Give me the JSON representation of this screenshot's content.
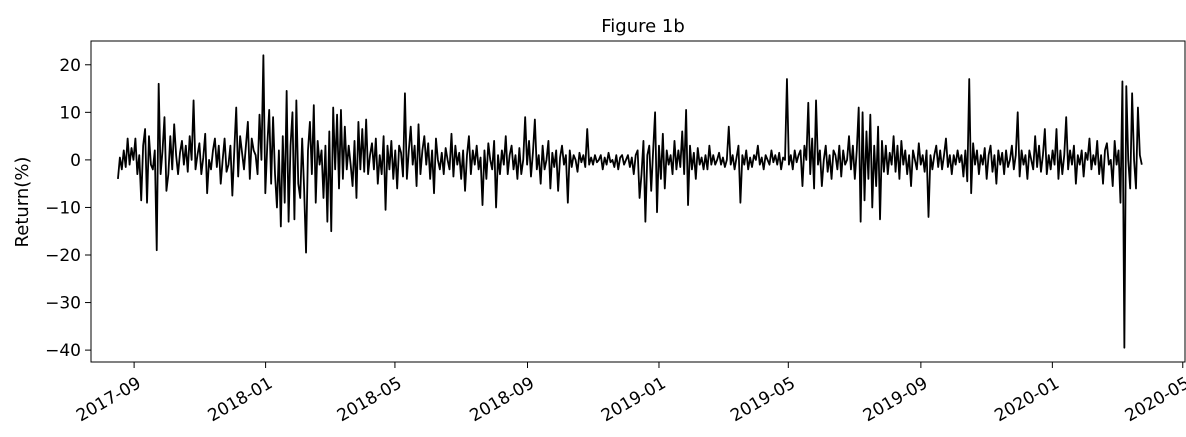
{
  "chart_data": {
    "type": "line",
    "title": "Figure 1b",
    "xlabel": "",
    "ylabel": "Return(%)",
    "ylim": [
      -42.5,
      25
    ],
    "yticks": [
      20,
      10,
      0,
      -10,
      -20,
      -30,
      -40
    ],
    "ytick_labels": [
      "20",
      "10",
      "0",
      "−10",
      "−20",
      "−30",
      "−40"
    ],
    "xlim": [
      "2017-07-23",
      "2020-05-04"
    ],
    "xticks": [
      "2017-09-01",
      "2018-01-01",
      "2018-05-01",
      "2018-09-01",
      "2019-01-01",
      "2019-05-01",
      "2019-09-01",
      "2020-01-01",
      "2020-05-01"
    ],
    "xtick_labels": [
      "2017-09",
      "2018-01",
      "2018-05",
      "2018-09",
      "2019-01",
      "2019-05",
      "2019-09",
      "2020-01",
      "2020-05"
    ],
    "grid": false,
    "legend": false,
    "line_color": "#000000",
    "x_start": "2017-08-17",
    "x_end": "2020-03-24",
    "values": [
      -4.0,
      0.5,
      -2.0,
      2.0,
      -1.5,
      4.5,
      -1.0,
      2.5,
      0.0,
      4.5,
      -3.0,
      1.0,
      -8.5,
      3.0,
      6.5,
      -9.0,
      5.0,
      -1.0,
      -2.0,
      2.0,
      -19.0,
      16.0,
      -3.0,
      2.0,
      9.0,
      -6.5,
      -3.0,
      5.0,
      -2.0,
      7.5,
      1.0,
      -3.0,
      1.5,
      4.0,
      -1.0,
      3.0,
      -2.5,
      5.0,
      0.0,
      12.5,
      -2.0,
      1.0,
      3.5,
      -3.0,
      0.5,
      5.5,
      -7.0,
      0.0,
      -2.0,
      2.0,
      4.5,
      -1.5,
      3.0,
      -5.0,
      0.0,
      4.5,
      -2.5,
      -1.0,
      3.0,
      -7.5,
      2.0,
      11.0,
      -3.5,
      5.0,
      1.5,
      -2.0,
      3.0,
      8.0,
      -4.0,
      4.5,
      2.0,
      1.0,
      -3.0,
      9.5,
      0.0,
      22.0,
      -7.0,
      3.0,
      10.5,
      -5.0,
      9.0,
      -3.0,
      -10.0,
      2.0,
      -14.0,
      5.0,
      -9.0,
      14.5,
      -13.0,
      3.0,
      10.0,
      -12.5,
      12.5,
      -5.0,
      -8.0,
      4.5,
      -6.0,
      -19.5,
      2.0,
      8.0,
      -3.0,
      11.5,
      -9.0,
      4.0,
      -1.0,
      2.0,
      -8.0,
      3.0,
      -13.0,
      6.0,
      -15.0,
      11.0,
      -2.0,
      9.5,
      -6.0,
      10.5,
      -4.0,
      7.0,
      -2.0,
      3.0,
      -1.0,
      -5.5,
      4.0,
      -8.0,
      8.0,
      -2.0,
      6.5,
      -2.5,
      8.5,
      -3.0,
      1.0,
      3.5,
      -2.0,
      4.5,
      -5.0,
      1.0,
      -3.0,
      5.0,
      -10.5,
      3.0,
      -2.0,
      4.0,
      -4.0,
      2.0,
      -6.0,
      3.0,
      1.5,
      -3.5,
      14.0,
      -4.0,
      2.0,
      7.0,
      -1.0,
      3.0,
      -5.5,
      7.5,
      -3.0,
      2.0,
      5.0,
      -1.0,
      3.5,
      -4.0,
      2.0,
      -7.0,
      4.5,
      0.0,
      -2.0,
      1.5,
      -3.0,
      2.5,
      0.0,
      -2.0,
      5.5,
      -3.5,
      3.0,
      -1.0,
      1.5,
      -4.0,
      2.0,
      -6.5,
      1.0,
      5.0,
      -3.0,
      2.0,
      -1.0,
      3.0,
      -2.0,
      0.5,
      -9.5,
      2.0,
      -4.0,
      3.5,
      0.0,
      -2.0,
      4.0,
      -10.0,
      1.0,
      -3.0,
      2.0,
      -1.0,
      5.0,
      -3.0,
      1.0,
      3.0,
      -2.0,
      1.0,
      -4.0,
      2.5,
      -3.0,
      0.0,
      9.0,
      -1.0,
      4.0,
      -3.5,
      1.5,
      8.5,
      -2.0,
      1.0,
      -5.0,
      3.0,
      -2.0,
      0.0,
      4.0,
      -6.0,
      1.5,
      -1.5,
      2.0,
      -6.5,
      0.5,
      3.0,
      -1.0,
      1.0,
      -9.0,
      2.0,
      -1.5,
      1.0,
      0.0,
      -2.5,
      1.5,
      -0.5,
      1.0,
      -1.5,
      6.5,
      -1.0,
      0.5,
      -1.0,
      1.0,
      -0.5,
      0.0,
      1.0,
      -2.0,
      0.5,
      -1.0,
      1.5,
      -0.5,
      0.0,
      -1.5,
      1.0,
      -2.0,
      0.5,
      1.0,
      -1.0,
      0.0,
      1.0,
      -1.5,
      0.5,
      -3.0,
      1.0,
      2.0,
      -8.0,
      -3.0,
      4.0,
      -13.0,
      1.0,
      3.0,
      -6.5,
      2.0,
      10.0,
      -11.0,
      3.0,
      -4.0,
      5.5,
      -6.0,
      2.0,
      -1.0,
      1.0,
      -3.0,
      4.0,
      -2.0,
      2.0,
      -1.5,
      6.0,
      -3.0,
      10.5,
      -9.5,
      3.0,
      -2.0,
      1.5,
      -4.0,
      2.5,
      -1.0,
      0.5,
      -2.0,
      1.0,
      -2.0,
      3.0,
      -1.0,
      1.0,
      -1.0,
      0.0,
      1.5,
      -1.0,
      0.5,
      -1.5,
      0.0,
      7.0,
      -1.0,
      1.0,
      -2.0,
      0.5,
      3.0,
      -9.0,
      1.0,
      -1.0,
      2.0,
      -2.0,
      0.5,
      -1.5,
      1.0,
      0.0,
      3.0,
      -1.0,
      0.5,
      -2.0,
      1.0,
      0.0,
      -1.0,
      2.0,
      -0.5,
      1.0,
      -1.0,
      1.5,
      -2.0,
      0.5,
      0.0,
      17.0,
      -1.0,
      1.0,
      -2.0,
      2.0,
      -0.5,
      1.0,
      2.0,
      -5.5,
      3.0,
      0.0,
      12.0,
      -3.0,
      4.5,
      -6.0,
      12.5,
      -1.0,
      2.0,
      -5.5,
      0.0,
      3.0,
      -2.5,
      1.0,
      -4.0,
      2.0,
      1.0,
      -2.0,
      3.0,
      -3.5,
      2.0,
      -1.0,
      0.0,
      5.0,
      -2.0,
      3.0,
      -4.0,
      2.0,
      11.0,
      -13.0,
      10.0,
      -8.5,
      6.0,
      -4.0,
      9.5,
      -10.0,
      3.0,
      -5.5,
      7.0,
      -12.5,
      4.0,
      -2.5,
      3.0,
      -3.0,
      1.5,
      -1.0,
      5.0,
      -2.5,
      3.0,
      -4.0,
      4.0,
      -1.0,
      2.0,
      -3.0,
      1.0,
      -5.5,
      2.0,
      0.0,
      -2.0,
      3.5,
      -1.0,
      1.0,
      -2.5,
      2.0,
      -12.0,
      1.0,
      -2.0,
      1.0,
      3.0,
      -1.5,
      2.0,
      -2.0,
      1.0,
      4.5,
      -1.5,
      1.0,
      -3.0,
      1.0,
      -1.0,
      2.0,
      -0.5,
      1.0,
      -3.5,
      2.0,
      -4.5,
      17.0,
      -7.0,
      3.5,
      -1.0,
      2.0,
      -3.0,
      1.0,
      -1.0,
      2.5,
      -4.0,
      1.0,
      3.0,
      -2.5,
      1.0,
      -5.0,
      2.0,
      -1.0,
      1.5,
      -3.0,
      2.0,
      -1.5,
      0.0,
      3.0,
      -2.0,
      1.0,
      10.0,
      -3.5,
      2.0,
      -1.0,
      1.0,
      -4.0,
      2.0,
      0.0,
      -2.0,
      5.0,
      -1.5,
      3.0,
      -2.5,
      1.0,
      6.5,
      -3.0,
      1.0,
      -2.0,
      2.0,
      -1.0,
      6.5,
      -4.0,
      2.0,
      -3.0,
      1.0,
      9.0,
      -2.0,
      2.0,
      -1.0,
      3.0,
      -5.0,
      1.0,
      -1.0,
      2.0,
      -3.5,
      1.5,
      0.0,
      4.5,
      -2.0,
      1.0,
      -1.0,
      4.0,
      -3.0,
      1.0,
      -5.0,
      2.0,
      3.5,
      -1.0,
      0.0,
      -5.5,
      4.0,
      -1.0,
      2.0,
      -9.0,
      16.5,
      -39.5,
      15.5,
      0.0,
      -6.0,
      14.0,
      0.0,
      -6.0,
      11.0,
      1.0,
      -1.0
    ]
  }
}
